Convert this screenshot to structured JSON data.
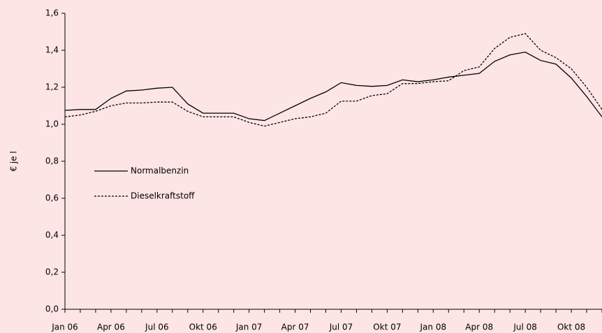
{
  "chart_data": {
    "type": "line",
    "ylabel": "€ je l",
    "categories": [
      "Jan 06",
      null,
      null,
      "Apr 06",
      null,
      null,
      "Jul 06",
      null,
      null,
      "Okt 06",
      null,
      null,
      "Jan 07",
      null,
      null,
      "Apr 07",
      null,
      null,
      "Jul 07",
      null,
      null,
      "Okt 07",
      null,
      null,
      "Jan 08",
      null,
      null,
      "Apr 08",
      null,
      null,
      "Jul 08",
      null,
      null,
      "Okt 08",
      null,
      null
    ],
    "series": [
      {
        "name": "Normalbenzin",
        "color": "#000000",
        "linestyle": "solid",
        "values": [
          1.075,
          1.08,
          1.08,
          1.14,
          1.18,
          1.185,
          1.195,
          1.2,
          1.11,
          1.06,
          1.06,
          1.06,
          1.03,
          1.02,
          1.06,
          1.1,
          1.14,
          1.175,
          1.225,
          1.21,
          1.205,
          1.21,
          1.24,
          1.23,
          1.24,
          1.255,
          1.265,
          1.275,
          1.34,
          1.375,
          1.39,
          1.345,
          1.325,
          1.25,
          1.15,
          1.04
        ]
      },
      {
        "name": "Dieselkraftstoff",
        "color": "#000000",
        "linestyle": "dashed",
        "values": [
          1.04,
          1.05,
          1.07,
          1.1,
          1.115,
          1.115,
          1.12,
          1.12,
          1.07,
          1.04,
          1.04,
          1.04,
          1.01,
          0.99,
          1.01,
          1.03,
          1.04,
          1.06,
          1.125,
          1.125,
          1.155,
          1.165,
          1.22,
          1.22,
          1.23,
          1.235,
          1.29,
          1.31,
          1.41,
          1.47,
          1.49,
          1.4,
          1.36,
          1.3,
          1.2,
          1.08
        ]
      }
    ],
    "ylim": [
      0,
      1.6
    ],
    "yticks": [
      {
        "value": 0,
        "label": "0,0"
      },
      {
        "value": 0.2,
        "label": "0,2"
      },
      {
        "value": 0.4,
        "label": "0,4"
      },
      {
        "value": 0.6,
        "label": "0,6"
      },
      {
        "value": 0.8,
        "label": "0,8"
      },
      {
        "value": 1.0,
        "label": "1,0"
      },
      {
        "value": 1.2,
        "label": "1,2"
      },
      {
        "value": 1.4,
        "label": "1,4"
      },
      {
        "value": 1.6,
        "label": "1,6"
      }
    ],
    "legend": "left",
    "grid": false
  }
}
